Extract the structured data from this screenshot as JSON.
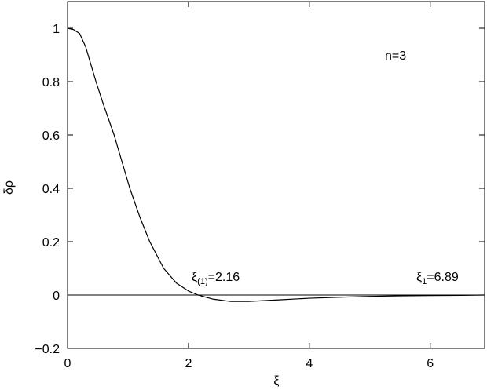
{
  "chart_data": {
    "type": "line",
    "xlabel": "ξ",
    "ylabel": "δρ",
    "x": [
      0,
      0.1,
      0.2,
      0.3,
      0.47,
      0.6,
      0.77,
      0.9,
      1.03,
      1.2,
      1.36,
      1.59,
      1.8,
      2.0,
      2.16,
      2.4,
      2.7,
      3.0,
      3.5,
      4.0,
      4.5,
      5.0,
      5.5,
      6.0,
      6.5,
      6.89
    ],
    "series": [
      {
        "color": "#000000",
        "values": [
          1,
          0.995,
          0.98,
          0.93,
          0.8,
          0.71,
          0.6,
          0.5,
          0.4,
          0.29,
          0.2,
          0.1,
          0.045,
          0.015,
          0,
          -0.015,
          -0.024,
          -0.024,
          -0.018,
          -0.012,
          -0.008,
          -0.005,
          -0.003,
          -0.002,
          -0.001,
          0
        ]
      }
    ],
    "xlim": [
      0,
      6.9
    ],
    "ylim": [
      -0.2,
      1.1
    ],
    "xticks": [
      0,
      2,
      4,
      6
    ],
    "yticks": [
      {
        "value": -0.2,
        "label": "−0.2"
      },
      0,
      0.2,
      0.4,
      0.6,
      0.8,
      1
    ],
    "zero_line": true,
    "annotations": [
      {
        "text": "n=3"
      },
      {
        "text": "ξ",
        "sub": "(1)",
        "after": "=2.16"
      },
      {
        "text": "ξ",
        "sub": "1",
        "after": "=6.89"
      }
    ]
  }
}
